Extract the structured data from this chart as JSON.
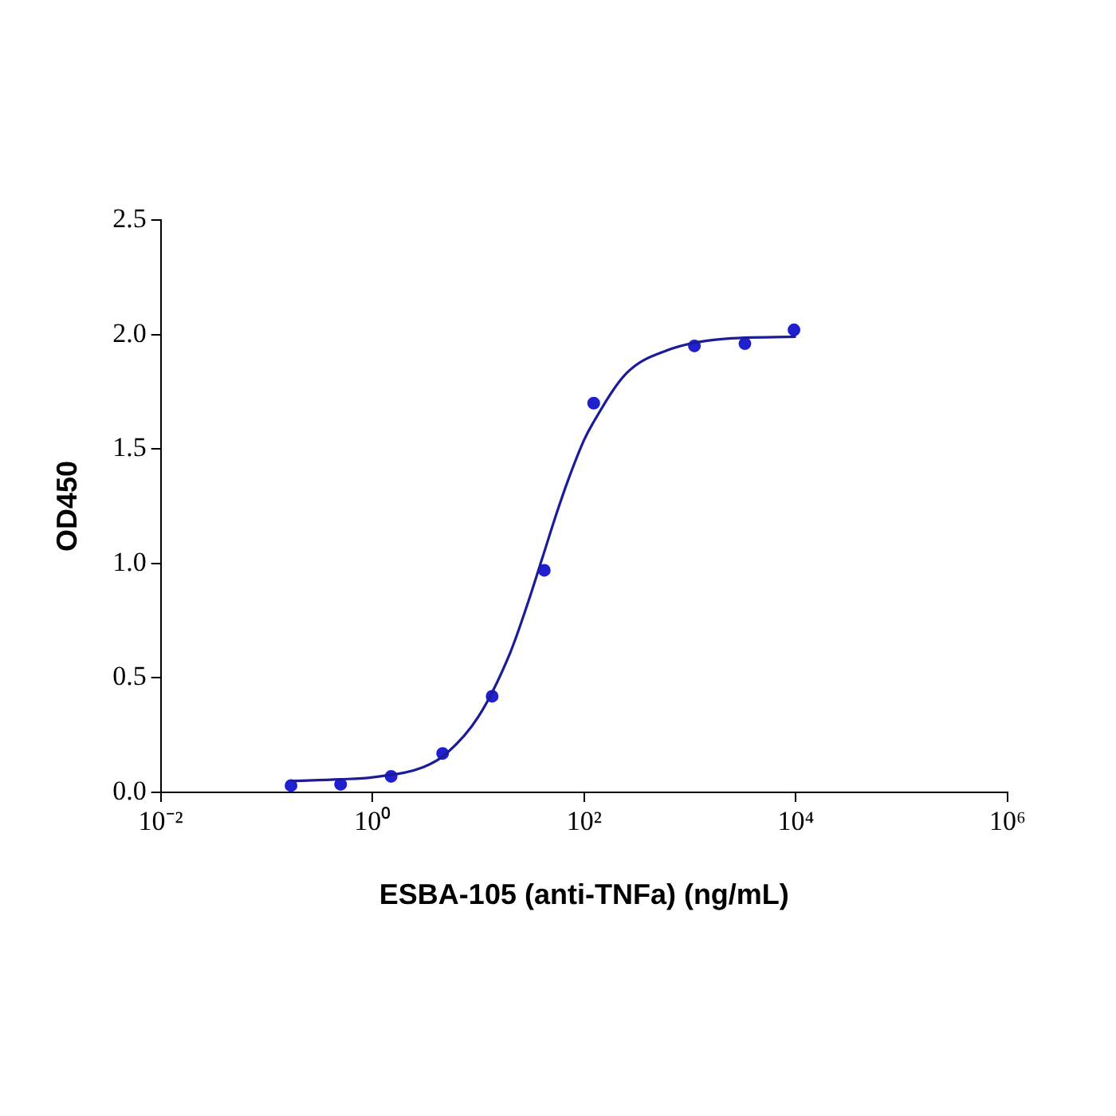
{
  "chart_data": {
    "type": "scatter",
    "xlabel": "ESBA-105 (anti-TNFa) (ng/mL)",
    "ylabel": "OD450",
    "log": "x",
    "grid": false,
    "legend": false,
    "marker": "circle",
    "xlim": [
      0.01,
      1000000
    ],
    "xticks": [
      {
        "value": 0.01,
        "label": "10⁻²"
      },
      {
        "value": 1,
        "label": "10⁰"
      },
      {
        "value": 100,
        "label": "10²"
      },
      {
        "value": 10000,
        "label": "10⁴"
      },
      {
        "value": 1000000,
        "label": "10⁶"
      }
    ],
    "ylim": [
      0,
      2.5
    ],
    "yticks": [
      {
        "value": 0,
        "label": "0.0"
      },
      {
        "value": 0.5,
        "label": "0.5"
      },
      {
        "value": 1,
        "label": "1.0"
      },
      {
        "value": 1.5,
        "label": "1.5"
      },
      {
        "value": 2,
        "label": "2.0"
      },
      {
        "value": 2.5,
        "label": "2.5"
      }
    ],
    "series": [
      {
        "type": "line",
        "color": "#1c1c9a",
        "marker": "none",
        "x": [
          0.17,
          0.5,
          1,
          3,
          5,
          10,
          20,
          30,
          40,
          55,
          70,
          100,
          120,
          250,
          600,
          2000,
          10000
        ],
        "values": [
          0.05,
          0.057,
          0.066,
          0.11,
          0.17,
          0.33,
          0.61,
          0.84,
          1.02,
          1.22,
          1.36,
          1.54,
          1.61,
          1.83,
          1.93,
          1.98,
          1.99
        ]
      },
      {
        "type": "scatter",
        "color": "#2020d0",
        "x": [
          0.17,
          0.5,
          1.5,
          4.6,
          13.5,
          42,
          123,
          1100,
          3300,
          9600
        ],
        "values": [
          0.03,
          0.035,
          0.07,
          0.17,
          0.42,
          0.97,
          1.7,
          1.95,
          1.96,
          2.02
        ]
      }
    ]
  }
}
